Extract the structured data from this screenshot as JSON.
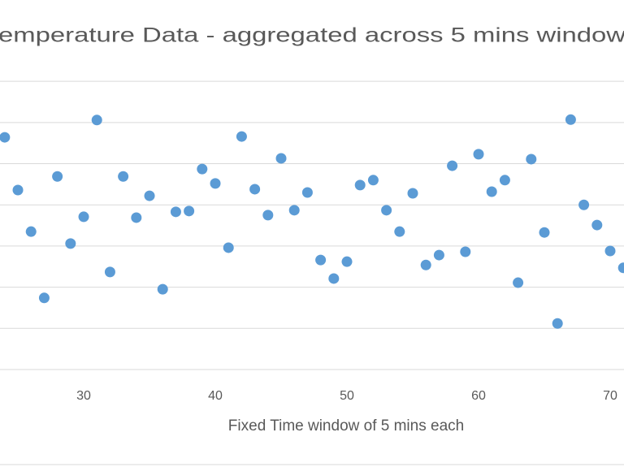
{
  "chart_data": {
    "type": "scatter",
    "title": "emperature Data - aggregated across 5 mins window",
    "x_label": "Fixed Time window of 5 mins each",
    "color": "#5b9bd5",
    "grid": true,
    "xlim": [
      23.64,
      71.05
    ],
    "xticks": [
      30,
      40,
      50,
      60,
      70
    ],
    "ylim": [
      0,
      7.2
    ],
    "yticks": [
      0,
      1,
      2,
      3,
      4,
      5,
      6,
      7
    ],
    "series": [
      {
        "name": "Temperature",
        "x": [
          24,
          25,
          26,
          27,
          28,
          29,
          30,
          31,
          32,
          33,
          34,
          35,
          36,
          37,
          38,
          39,
          40,
          41,
          42,
          43,
          44,
          45,
          46,
          47,
          48,
          49,
          50,
          51,
          52,
          53,
          54,
          55,
          56,
          57,
          58,
          59,
          60,
          61,
          62,
          63,
          64,
          65,
          66,
          67,
          68,
          69,
          70,
          71
        ],
        "values": [
          5.64,
          4.36,
          3.35,
          1.74,
          4.69,
          3.06,
          3.71,
          6.06,
          2.37,
          4.69,
          3.69,
          4.22,
          1.95,
          3.83,
          3.85,
          4.87,
          4.52,
          2.96,
          5.66,
          4.38,
          3.75,
          5.13,
          3.87,
          4.3,
          2.66,
          2.21,
          2.62,
          4.48,
          4.6,
          3.87,
          3.35,
          4.28,
          2.54,
          2.78,
          4.95,
          2.86,
          5.23,
          4.32,
          4.6,
          2.11,
          5.11,
          3.33,
          1.12,
          6.07,
          4.0,
          3.51,
          2.88,
          2.47
        ]
      }
    ]
  }
}
